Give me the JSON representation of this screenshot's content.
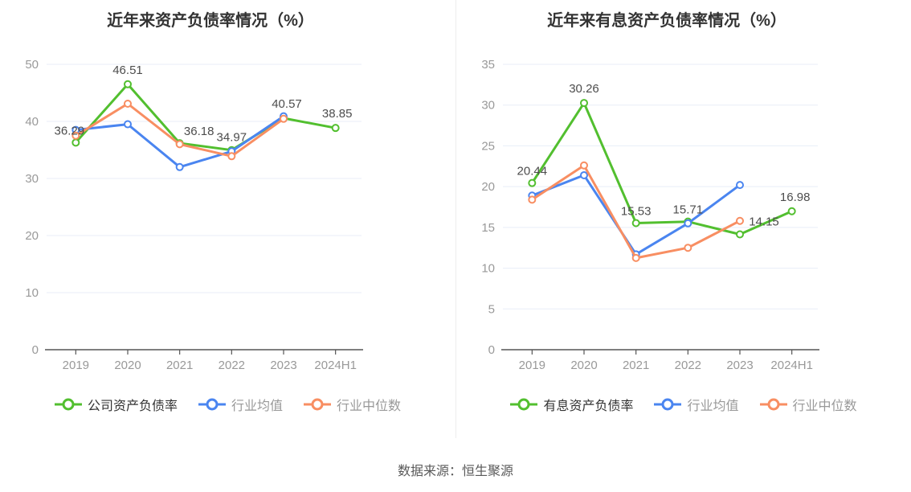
{
  "footer": {
    "source": "数据来源：恒生聚源"
  },
  "palette": {
    "company_green": "#52bf2f",
    "industry_mean_blue": "#4a85f0",
    "industry_median_orange": "#f88e62",
    "grid_line": "#e8eef7",
    "axis_line": "#555555",
    "axis_label": "#999999",
    "data_label": "#4d4d4d",
    "title_text": "#333333",
    "legend_primary_text": "#333333",
    "legend_secondary_text": "#999999"
  },
  "chart_data": [
    {
      "type": "line",
      "title": "近年来资产负债率情况（%）",
      "categories": [
        "2019",
        "2020",
        "2021",
        "2022",
        "2023",
        "2024H1"
      ],
      "ylim": [
        0,
        50
      ],
      "ytick_step": 10,
      "grid": true,
      "legend_position": "bottom",
      "series": [
        {
          "name": "公司资产负债率",
          "color": "#52bf2f",
          "values": [
            36.29,
            46.51,
            36.18,
            34.97,
            40.57,
            38.85
          ],
          "show_labels": true,
          "labels": [
            "36.29",
            "46.51",
            "36.18",
            "34.97",
            "40.57",
            "38.85"
          ],
          "label_offsets": [
            [
              -8,
              -10
            ],
            [
              0,
              -13
            ],
            [
              24,
              -10
            ],
            [
              0,
              -11
            ],
            [
              4,
              -13
            ],
            [
              2,
              -13
            ]
          ],
          "legend_text_color": "#333333"
        },
        {
          "name": "行业均值",
          "color": "#4a85f0",
          "values": [
            38.5,
            39.5,
            32.0,
            34.75,
            40.9,
            null
          ],
          "show_labels": false,
          "legend_text_color": "#999999"
        },
        {
          "name": "行业中位数",
          "color": "#f88e62",
          "values": [
            37.5,
            43.1,
            36.0,
            33.9,
            40.45,
            null
          ],
          "show_labels": false,
          "legend_text_color": "#999999"
        }
      ]
    },
    {
      "type": "line",
      "title": "近年来有息资产负债率情况（%）",
      "categories": [
        "2019",
        "2020",
        "2021",
        "2022",
        "2023",
        "2024H1"
      ],
      "ylim": [
        0,
        35
      ],
      "ytick_step": 5,
      "grid": true,
      "legend_position": "bottom",
      "series": [
        {
          "name": "有息资产负债率",
          "color": "#52bf2f",
          "values": [
            20.44,
            30.26,
            15.53,
            15.71,
            14.15,
            16.98
          ],
          "show_labels": true,
          "labels": [
            "20.44",
            "30.26",
            "15.53",
            "15.71",
            "14.15",
            "16.98"
          ],
          "label_offsets": [
            [
              0,
              -10
            ],
            [
              0,
              -13
            ],
            [
              0,
              -10
            ],
            [
              0,
              -10
            ],
            [
              30,
              -11
            ],
            [
              4,
              -13
            ]
          ],
          "legend_text_color": "#333333"
        },
        {
          "name": "行业均值",
          "color": "#4a85f0",
          "values": [
            18.9,
            21.4,
            11.7,
            15.5,
            20.2,
            null
          ],
          "show_labels": false,
          "legend_text_color": "#999999"
        },
        {
          "name": "行业中位数",
          "color": "#f88e62",
          "values": [
            18.4,
            22.6,
            11.25,
            12.5,
            15.8,
            null
          ],
          "show_labels": false,
          "legend_text_color": "#999999"
        }
      ]
    }
  ]
}
